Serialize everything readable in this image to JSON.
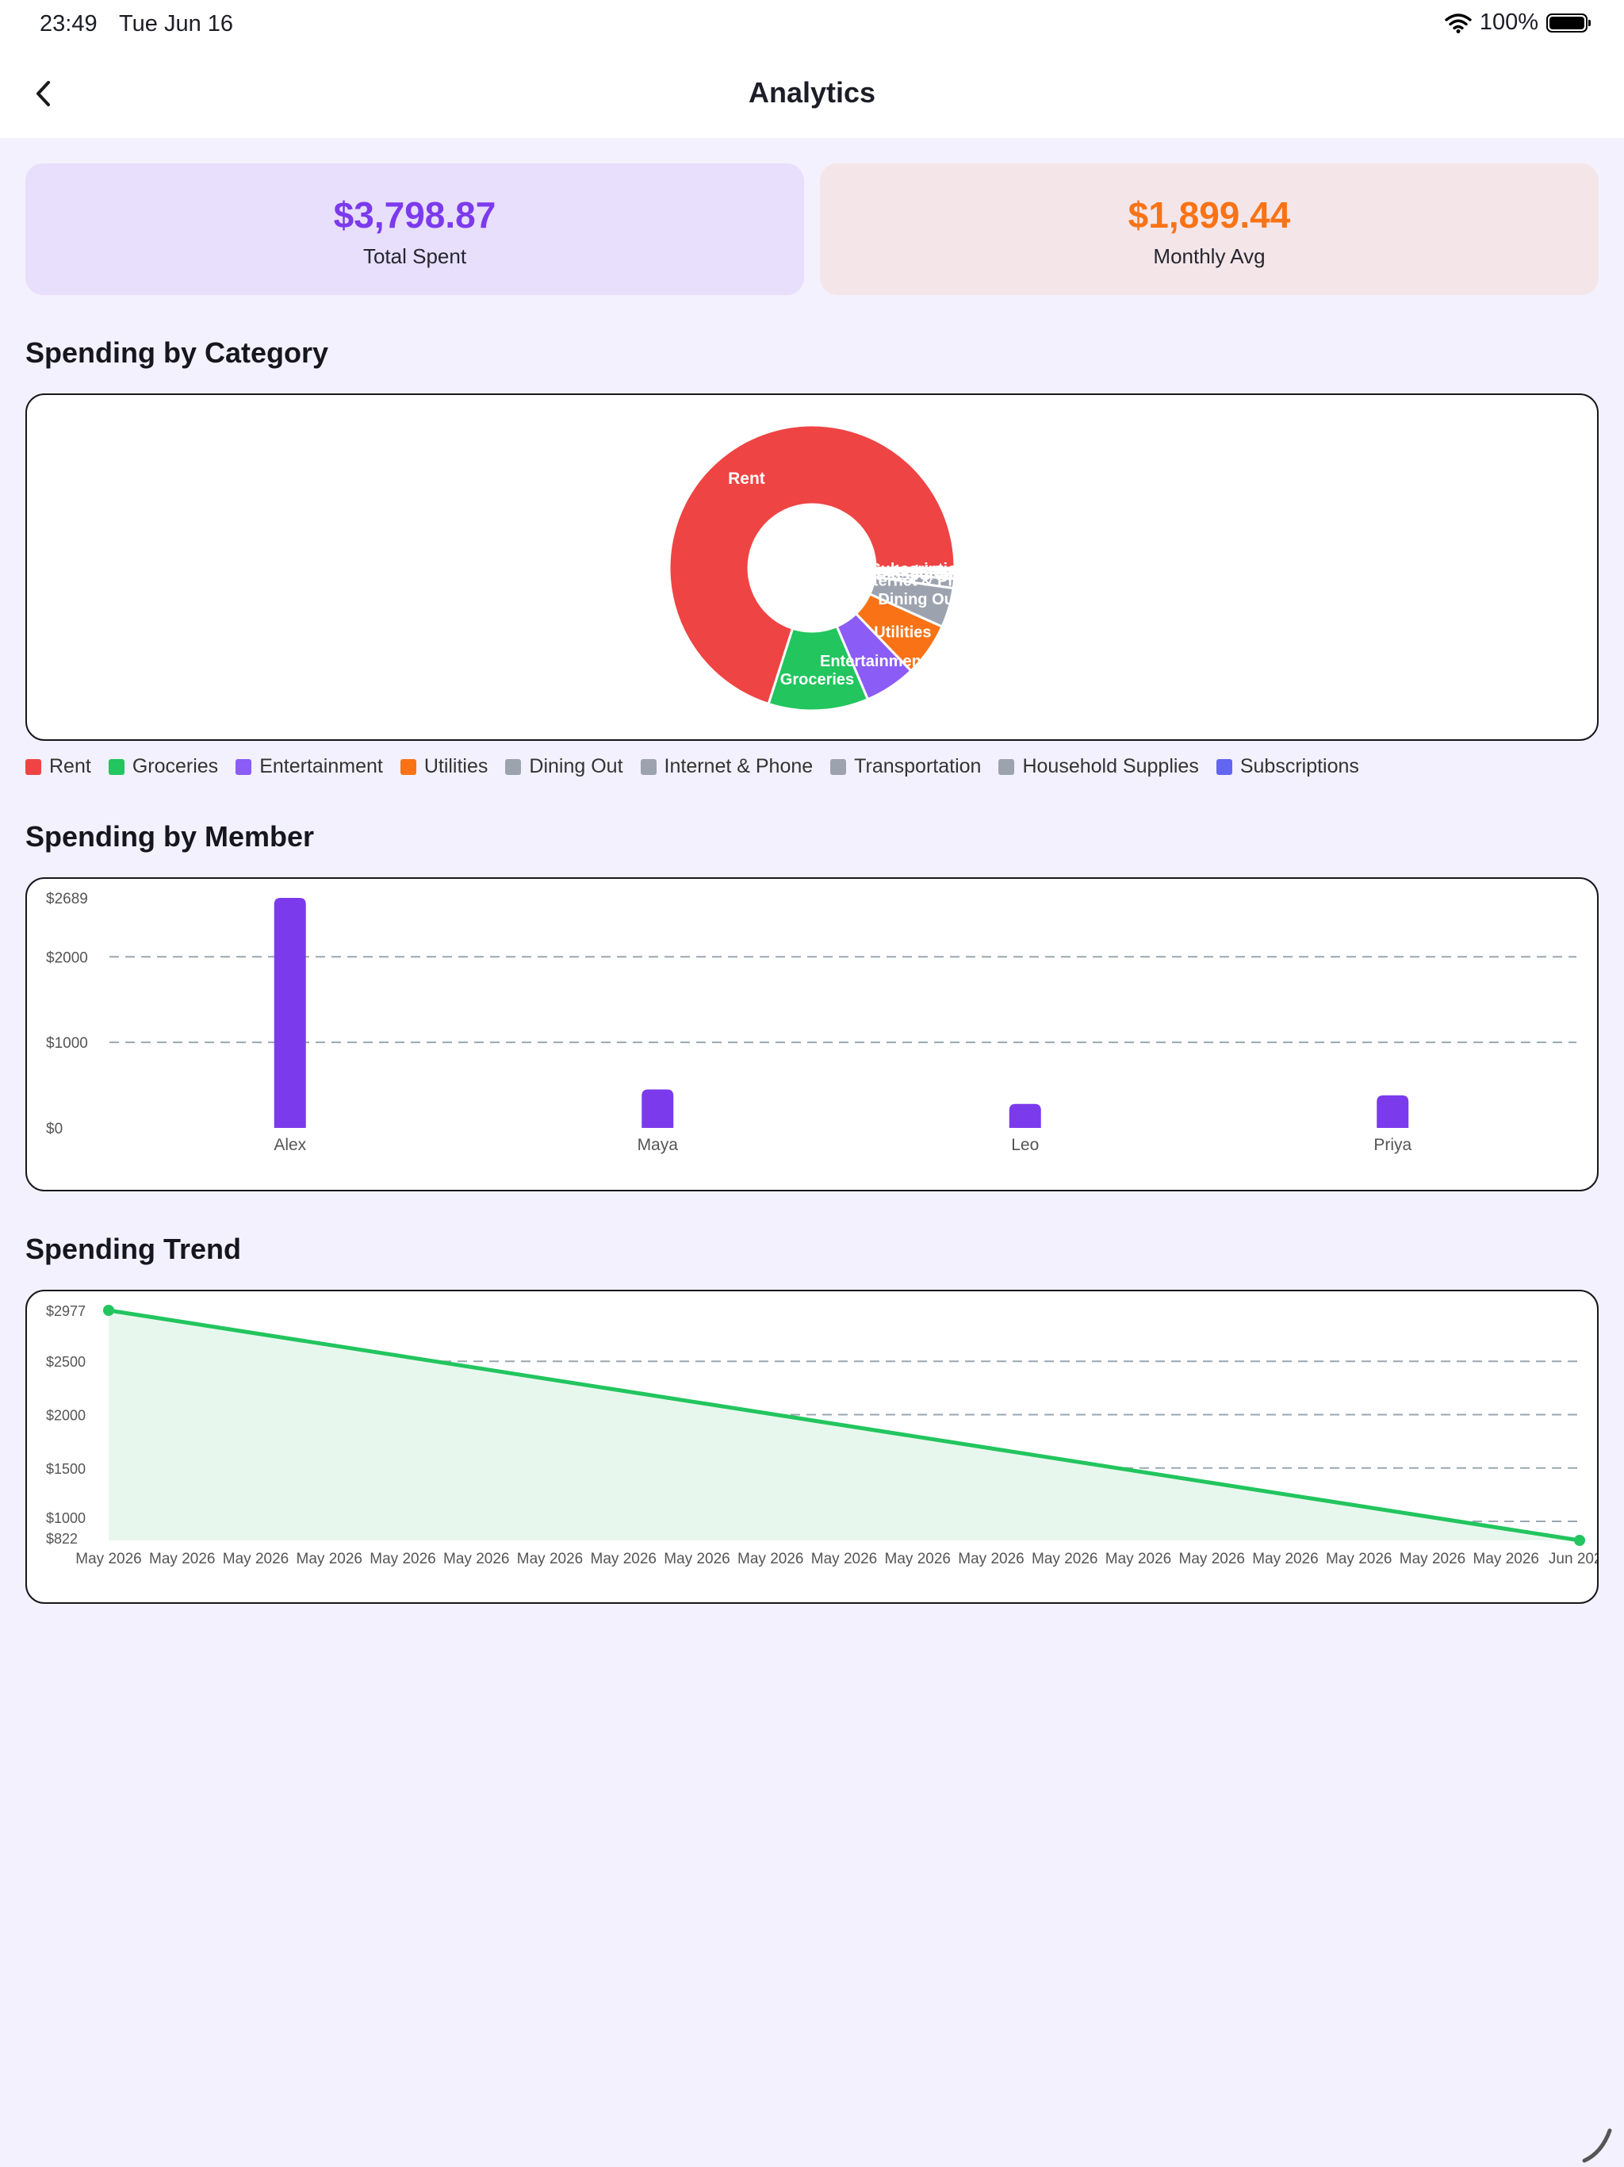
{
  "status_bar": {
    "time": "23:49",
    "date": "Tue Jun 16",
    "battery": "100%"
  },
  "header": {
    "title": "Analytics",
    "back_icon": "chevron-left-icon"
  },
  "summary": {
    "total": {
      "value": "$3,798.87",
      "label": "Total Spent",
      "color": "#7c3aed"
    },
    "avg": {
      "value": "$1,899.44",
      "label": "Monthly Avg",
      "color": "#f97316"
    }
  },
  "sections": {
    "category": "Spending by Category",
    "member": "Spending by Member",
    "trend": "Spending Trend"
  },
  "chart_data": [
    {
      "type": "pie",
      "title": "Spending by Category",
      "donut": true,
      "categories": [
        "Rent",
        "Groceries",
        "Entertainment",
        "Utilities",
        "Dining Out",
        "Internet & Phone",
        "Transportation",
        "Household Supplies",
        "Subscriptions"
      ],
      "values": [
        2660,
        430,
        220,
        230,
        170,
        40,
        22,
        14,
        10
      ],
      "colors": [
        "#ef4444",
        "#22c55e",
        "#8b5cf6",
        "#f97316",
        "#9ca3af",
        "#9ca3af",
        "#9ca3af",
        "#9ca3af",
        "#6366f1"
      ],
      "slice_labels": [
        "Rent",
        "Groceries",
        "Entertainment",
        "Utilities",
        "Dining Out",
        "Internet & Phone",
        "Transportation",
        "Household Supplies",
        "Subscriptions"
      ],
      "legend": "bottom"
    },
    {
      "type": "bar",
      "title": "Spending by Member",
      "categories": [
        "Alex",
        "Maya",
        "Leo",
        "Priya"
      ],
      "values": [
        2689,
        450,
        280,
        380
      ],
      "ylim": [
        0,
        2689
      ],
      "yticks": [
        "$0",
        "$1000",
        "$2000",
        "$2689"
      ],
      "ytick_values": [
        0,
        1000,
        2000,
        2689
      ],
      "color": "#7c3aed",
      "grid": true
    },
    {
      "type": "area",
      "title": "Spending Trend",
      "x_labels": [
        "May 2026",
        "May 2026",
        "May 2026",
        "May 2026",
        "May 2026",
        "May 2026",
        "May 2026",
        "May 2026",
        "May 2026",
        "May 2026",
        "May 2026",
        "May 2026",
        "May 2026",
        "May 2026",
        "May 2026",
        "May 2026",
        "May 2026",
        "May 2026",
        "May 2026",
        "May 2026",
        "Jun 2026"
      ],
      "series": [
        {
          "values": [
            2977,
            822
          ]
        }
      ],
      "ylim": [
        822,
        2977
      ],
      "yticks": [
        "$822",
        "$1000",
        "$1500",
        "$2000",
        "$2500",
        "$2977"
      ],
      "ytick_values": [
        822,
        1000,
        1500,
        2000,
        2500,
        2977
      ],
      "color": "#22c55e",
      "fill": "#e8f7ee",
      "grid": true
    }
  ]
}
